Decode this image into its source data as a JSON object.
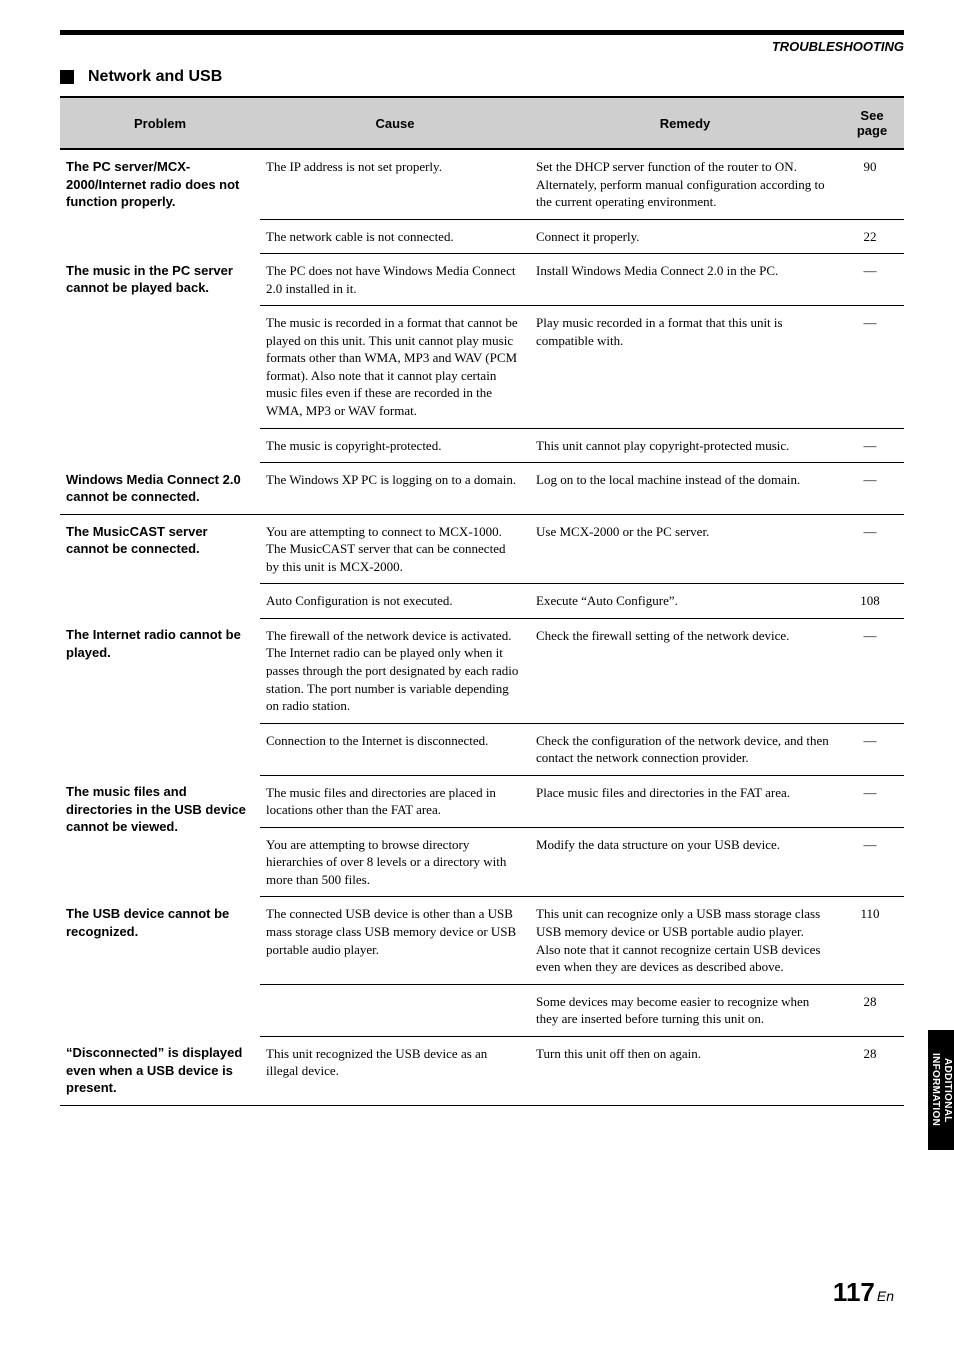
{
  "header_label": "TROUBLESHOOTING",
  "section_title": "Network and USB",
  "columns": {
    "problem": "Problem",
    "cause": "Cause",
    "remedy": "Remedy",
    "see_page": "See page"
  },
  "dash": "—",
  "rows": [
    {
      "problem": "The PC server/MCX-2000/Internet radio does not function properly.",
      "sub": [
        {
          "cause": "The IP address is not set properly.",
          "remedy": "Set the DHCP server function of the router to ON. Alternately, perform manual configuration according to the current operating environment.",
          "page": "90"
        },
        {
          "cause": "The network cable is not connected.",
          "remedy": "Connect it properly.",
          "page": "22"
        }
      ]
    },
    {
      "problem": "The music in the PC server cannot be played back.",
      "sub": [
        {
          "cause": "The PC does not have Windows Media Connect 2.0 installed in it.",
          "remedy": "Install Windows Media Connect 2.0 in the PC.",
          "page": "—"
        },
        {
          "cause": "The music is recorded in a format that cannot be played on this unit. This unit cannot play music formats other than WMA, MP3 and WAV (PCM format). Also note that it cannot play certain music files even if these are recorded in the WMA, MP3 or WAV format.",
          "remedy": "Play music recorded in a format that this unit is compatible with.",
          "page": "—"
        },
        {
          "cause": "The music is copyright-protected.",
          "remedy": "This unit cannot play copyright-protected music.",
          "page": "—"
        }
      ]
    },
    {
      "problem": "Windows Media Connect 2.0 cannot be connected.",
      "sub": [
        {
          "cause": "The Windows XP PC is logging on to a domain.",
          "remedy": "Log on to the local machine instead of the domain.",
          "page": "—"
        }
      ]
    },
    {
      "problem": "The MusicCAST server cannot be connected.",
      "sub": [
        {
          "cause": "You are attempting to connect to MCX-1000. The MusicCAST server that can be connected by this unit is MCX-2000.",
          "remedy": "Use MCX-2000 or the PC server.",
          "page": "—"
        },
        {
          "cause": "Auto Configuration is not executed.",
          "remedy": "Execute “Auto Configure”.",
          "page": "108"
        }
      ]
    },
    {
      "problem": "The Internet radio cannot be played.",
      "sub": [
        {
          "cause": "The firewall of the network device is activated. The Internet radio can be played only when it passes through the port designated by each radio station. The port number is variable depending on radio station.",
          "remedy": "Check the firewall setting of the network device.",
          "page": "—"
        },
        {
          "cause": "Connection to the Internet is disconnected.",
          "remedy": "Check the configuration of the network device, and then contact the network connection provider.",
          "page": "—"
        }
      ]
    },
    {
      "problem": "The music files and directories in the USB device cannot be viewed.",
      "sub": [
        {
          "cause": "The music files and directories are placed in locations other than the FAT area.",
          "remedy": "Place music files and directories in the FAT area.",
          "page": "—"
        },
        {
          "cause": "You are attempting to browse directory hierarchies of over 8 levels or a directory with more than 500 files.",
          "remedy": "Modify the data structure on your USB device.",
          "page": "—"
        }
      ]
    },
    {
      "problem": "The USB device cannot be recognized.",
      "sub": [
        {
          "cause": "The connected USB device is other than a USB mass storage class USB memory device or USB portable audio player.",
          "remedy": "This unit can recognize only a USB mass storage class USB memory device or USB portable audio player. Also note that it cannot recognize certain USB devices even when they are devices as described above.",
          "page": "110"
        },
        {
          "cause": "",
          "remedy": "Some devices may become easier to recognize when they are inserted before turning this unit on.",
          "page": "28"
        }
      ]
    },
    {
      "problem": "“Disconnected” is displayed even when a USB device is present.",
      "sub": [
        {
          "cause": "This unit recognized the USB device as an illegal device.",
          "remedy": "Turn this unit off then on again.",
          "page": "28"
        }
      ]
    }
  ],
  "side_tab_line1": "ADDITIONAL",
  "side_tab_line2": "INFORMATION",
  "page_number_big": "117",
  "page_number_small": "En"
}
